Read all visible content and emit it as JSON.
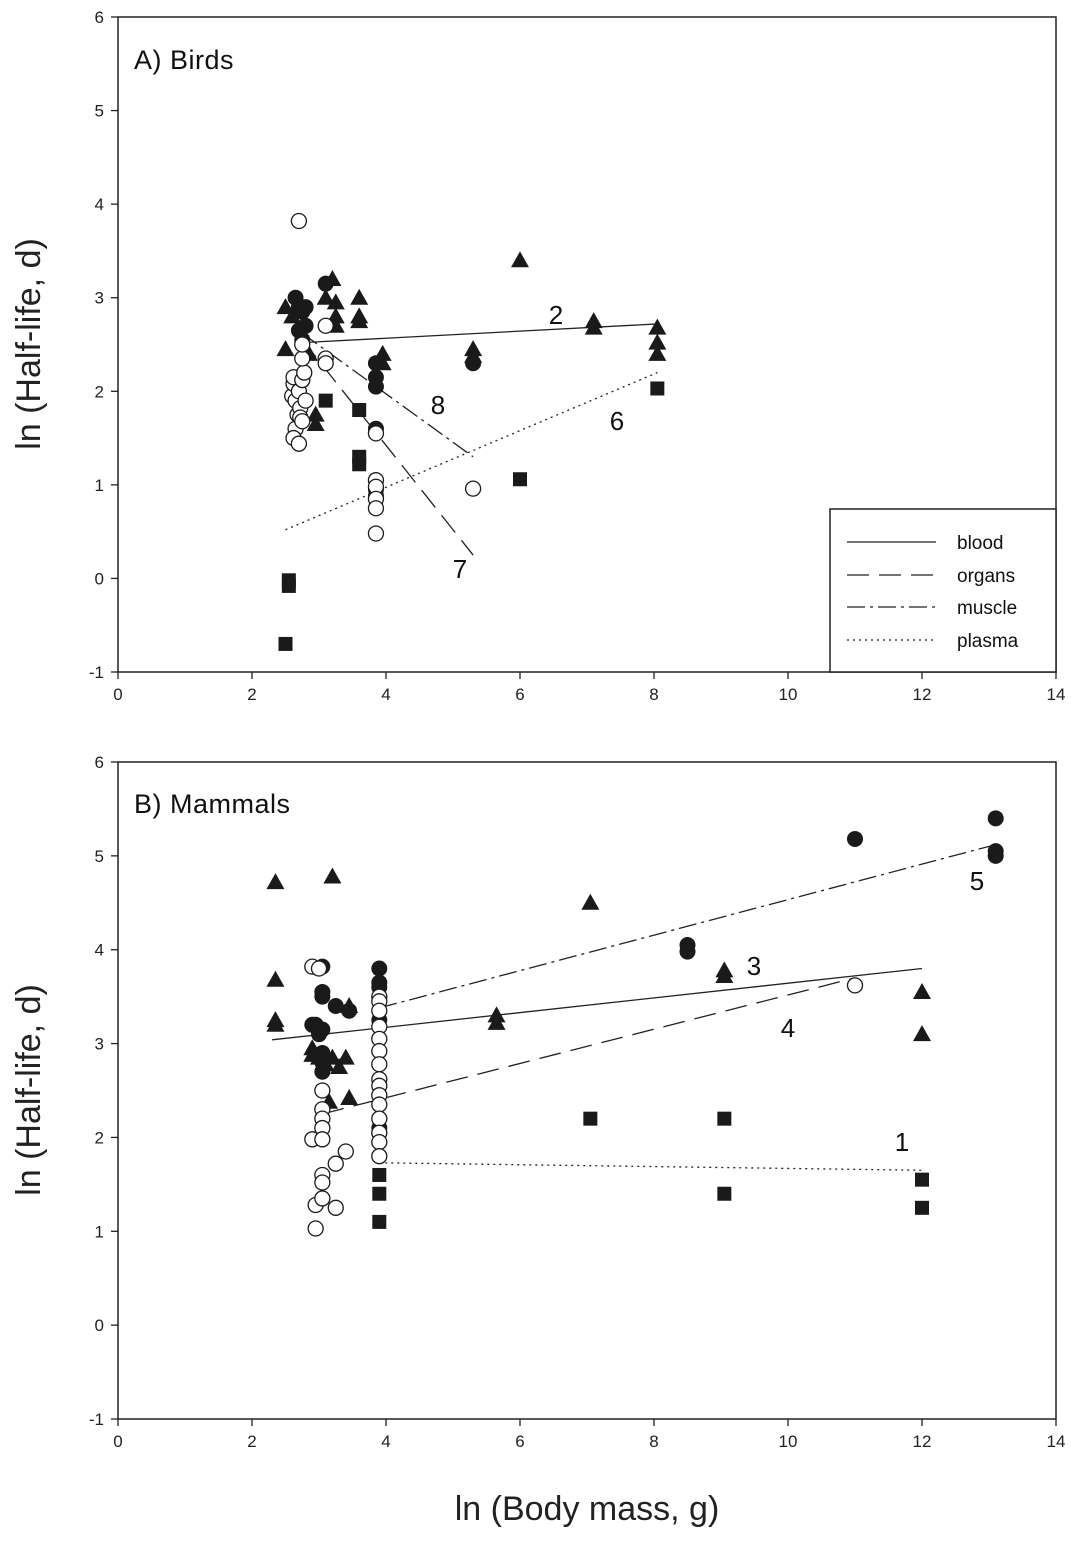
{
  "figure": {
    "xlabel": "ln (Body mass, g)",
    "ylabel": "ln (Half-life, d)"
  },
  "legend": {
    "entries": [
      {
        "label": "blood",
        "dash": "solid"
      },
      {
        "label": "organs",
        "dash": "long-dash"
      },
      {
        "label": "muscle",
        "dash": "dash-dot"
      },
      {
        "label": "plasma",
        "dash": "dotted"
      }
    ]
  },
  "chart_data": [
    {
      "type": "scatter",
      "title": "A) Birds",
      "xlabel": "",
      "ylabel": "ln (Half-life, d)",
      "xlim": [
        0,
        14
      ],
      "ylim": [
        -1,
        6
      ],
      "xticks": [
        0,
        2,
        4,
        6,
        8,
        10,
        12,
        14
      ],
      "yticks": [
        -1,
        0,
        1,
        2,
        3,
        4,
        5,
        6
      ],
      "grid": false,
      "legend_position": "bottom-right",
      "series": [
        {
          "marker": "filled-circle",
          "points": [
            [
              2.65,
              3.0
            ],
            [
              2.7,
              2.9
            ],
            [
              2.75,
              2.85
            ],
            [
              2.7,
              2.65
            ],
            [
              2.75,
              2.55
            ],
            [
              2.8,
              2.7
            ],
            [
              2.8,
              2.9
            ],
            [
              3.1,
              3.15
            ],
            [
              3.85,
              2.3
            ],
            [
              3.85,
              2.15
            ],
            [
              3.85,
              2.05
            ],
            [
              3.85,
              1.6
            ],
            [
              3.85,
              0.95
            ],
            [
              3.85,
              0.88
            ],
            [
              5.3,
              2.3
            ]
          ]
        },
        {
          "marker": "filled-triangle",
          "points": [
            [
              2.5,
              2.9
            ],
            [
              2.5,
              2.45
            ],
            [
              2.6,
              2.8
            ],
            [
              2.85,
              2.4
            ],
            [
              2.95,
              1.65
            ],
            [
              2.95,
              1.75
            ],
            [
              3.1,
              3.0
            ],
            [
              3.2,
              3.2
            ],
            [
              3.25,
              2.95
            ],
            [
              3.25,
              2.7
            ],
            [
              3.25,
              2.8
            ],
            [
              3.6,
              3.0
            ],
            [
              3.6,
              2.8
            ],
            [
              3.6,
              2.75
            ],
            [
              3.95,
              2.4
            ],
            [
              3.95,
              2.3
            ],
            [
              5.3,
              2.45
            ],
            [
              5.3,
              2.38
            ],
            [
              6.0,
              3.4
            ],
            [
              7.1,
              2.75
            ],
            [
              7.1,
              2.68
            ],
            [
              8.05,
              2.68
            ],
            [
              8.05,
              2.52
            ],
            [
              8.05,
              2.4
            ]
          ]
        },
        {
          "marker": "filled-square",
          "points": [
            [
              2.55,
              -0.02
            ],
            [
              2.55,
              -0.08
            ],
            [
              2.5,
              -0.7
            ],
            [
              3.1,
              1.9
            ],
            [
              3.6,
              1.8
            ],
            [
              3.6,
              1.3
            ],
            [
              3.6,
              1.22
            ],
            [
              3.85,
              0.9
            ],
            [
              3.85,
              0.8
            ],
            [
              6.0,
              1.06
            ],
            [
              8.05,
              2.03
            ]
          ]
        },
        {
          "marker": "open-circle",
          "points": [
            [
              2.7,
              3.82
            ],
            [
              2.6,
              1.95
            ],
            [
              2.62,
              2.08
            ],
            [
              2.62,
              2.15
            ],
            [
              2.65,
              1.9
            ],
            [
              2.68,
              1.75
            ],
            [
              2.7,
              2.0
            ],
            [
              2.72,
              1.82
            ],
            [
              2.65,
              1.6
            ],
            [
              2.62,
              1.5
            ],
            [
              2.7,
              1.44
            ],
            [
              2.72,
              1.72
            ],
            [
              2.75,
              2.12
            ],
            [
              2.78,
              2.2
            ],
            [
              2.75,
              2.35
            ],
            [
              2.75,
              2.5
            ],
            [
              2.75,
              1.68
            ],
            [
              2.8,
              1.9
            ],
            [
              3.1,
              2.7
            ],
            [
              3.1,
              2.35
            ],
            [
              3.1,
              2.3
            ],
            [
              3.85,
              1.55
            ],
            [
              3.85,
              1.05
            ],
            [
              3.85,
              0.98
            ],
            [
              3.85,
              0.85
            ],
            [
              3.85,
              0.75
            ],
            [
              3.85,
              0.48
            ],
            [
              5.3,
              0.96
            ]
          ]
        }
      ],
      "fits": [
        {
          "label": "2",
          "dash": "solid",
          "x": [
            2.75,
            8.05
          ],
          "y": [
            2.52,
            2.72
          ]
        },
        {
          "label": "6",
          "dash": "dotted",
          "x": [
            2.5,
            8.05
          ],
          "y": [
            0.52,
            2.2
          ]
        },
        {
          "label": "7",
          "dash": "long-dash",
          "x": [
            2.75,
            5.3
          ],
          "y": [
            2.55,
            0.25
          ]
        },
        {
          "label": "8",
          "dash": "dash-dot",
          "x": [
            2.75,
            5.3
          ],
          "y": [
            2.62,
            1.3
          ]
        }
      ]
    },
    {
      "type": "scatter",
      "title": "B) Mammals",
      "xlabel": "ln (Body mass, g)",
      "ylabel": "ln (Half-life, d)",
      "xlim": [
        0,
        14
      ],
      "ylim": [
        -1,
        6
      ],
      "xticks": [
        0,
        2,
        4,
        6,
        8,
        10,
        12,
        14
      ],
      "yticks": [
        -1,
        0,
        1,
        2,
        3,
        4,
        5,
        6
      ],
      "grid": false,
      "series": [
        {
          "marker": "filled-circle",
          "points": [
            [
              3.05,
              3.82
            ],
            [
              3.05,
              3.55
            ],
            [
              3.05,
              3.5
            ],
            [
              2.9,
              3.2
            ],
            [
              2.95,
              3.2
            ],
            [
              3.0,
              3.1
            ],
            [
              3.05,
              3.15
            ],
            [
              3.05,
              2.9
            ],
            [
              3.05,
              2.8
            ],
            [
              3.05,
              2.7
            ],
            [
              3.25,
              3.4
            ],
            [
              3.45,
              3.35
            ],
            [
              3.9,
              3.8
            ],
            [
              3.9,
              3.65
            ],
            [
              3.9,
              3.6
            ],
            [
              3.9,
              3.25
            ],
            [
              3.9,
              2.1
            ],
            [
              3.9,
              2.05
            ],
            [
              8.5,
              4.05
            ],
            [
              8.5,
              3.98
            ],
            [
              11.0,
              5.18
            ],
            [
              13.1,
              5.4
            ],
            [
              13.1,
              5.05
            ],
            [
              13.1,
              5.0
            ]
          ]
        },
        {
          "marker": "filled-triangle",
          "points": [
            [
              2.35,
              4.72
            ],
            [
              2.35,
              3.68
            ],
            [
              2.35,
              3.25
            ],
            [
              2.35,
              3.2
            ],
            [
              3.2,
              4.78
            ],
            [
              2.9,
              2.95
            ],
            [
              2.9,
              2.88
            ],
            [
              3.0,
              2.85
            ],
            [
              3.1,
              2.78
            ],
            [
              3.2,
              2.85
            ],
            [
              3.3,
              2.75
            ],
            [
              3.4,
              2.85
            ],
            [
              3.45,
              2.42
            ],
            [
              3.45,
              3.4
            ],
            [
              3.15,
              2.38
            ],
            [
              5.65,
              3.3
            ],
            [
              5.65,
              3.22
            ],
            [
              7.05,
              4.5
            ],
            [
              9.05,
              3.78
            ],
            [
              9.05,
              3.72
            ],
            [
              12.0,
              3.55
            ],
            [
              12.0,
              3.1
            ]
          ]
        },
        {
          "marker": "filled-square",
          "points": [
            [
              3.9,
              1.6
            ],
            [
              3.9,
              1.4
            ],
            [
              3.9,
              1.1
            ],
            [
              7.05,
              2.2
            ],
            [
              9.05,
              2.2
            ],
            [
              9.05,
              1.4
            ],
            [
              12.0,
              1.55
            ],
            [
              12.0,
              1.25
            ]
          ]
        },
        {
          "marker": "open-circle",
          "points": [
            [
              2.9,
              3.82
            ],
            [
              3.0,
              3.8
            ],
            [
              2.9,
              1.98
            ],
            [
              2.95,
              1.28
            ],
            [
              2.95,
              1.03
            ],
            [
              3.05,
              2.5
            ],
            [
              3.05,
              2.3
            ],
            [
              3.05,
              2.2
            ],
            [
              3.05,
              2.1
            ],
            [
              3.05,
              1.98
            ],
            [
              3.05,
              1.6
            ],
            [
              3.05,
              1.52
            ],
            [
              3.05,
              1.35
            ],
            [
              3.25,
              1.72
            ],
            [
              3.25,
              1.25
            ],
            [
              3.4,
              1.85
            ],
            [
              3.9,
              3.5
            ],
            [
              3.9,
              3.45
            ],
            [
              3.9,
              3.35
            ],
            [
              3.9,
              3.18
            ],
            [
              3.9,
              3.05
            ],
            [
              3.9,
              2.92
            ],
            [
              3.9,
              2.78
            ],
            [
              3.9,
              2.62
            ],
            [
              3.9,
              2.55
            ],
            [
              3.9,
              2.45
            ],
            [
              3.9,
              2.35
            ],
            [
              3.9,
              2.2
            ],
            [
              3.9,
              2.05
            ],
            [
              3.9,
              1.95
            ],
            [
              3.9,
              1.8
            ],
            [
              11.0,
              3.62
            ]
          ]
        }
      ],
      "fits": [
        {
          "label": "1",
          "dash": "dotted",
          "x": [
            3.9,
            12.0
          ],
          "y": [
            1.73,
            1.65
          ]
        },
        {
          "label": "3",
          "dash": "solid",
          "x": [
            2.3,
            12.0
          ],
          "y": [
            3.04,
            3.8
          ]
        },
        {
          "label": "4",
          "dash": "long-dash",
          "x": [
            3.05,
            11.0
          ],
          "y": [
            2.25,
            3.7
          ]
        },
        {
          "label": "5",
          "dash": "dash-dot",
          "x": [
            3.9,
            13.1
          ],
          "y": [
            3.38,
            5.12
          ]
        }
      ]
    }
  ]
}
